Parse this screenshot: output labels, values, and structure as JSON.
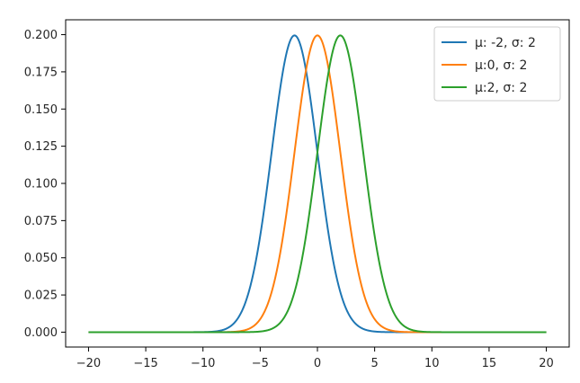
{
  "chart_data": {
    "type": "line",
    "title": "",
    "xlabel": "",
    "ylabel": "",
    "xlim": [
      -22,
      22
    ],
    "ylim": [
      -0.01,
      0.21
    ],
    "grid": false,
    "legend_placement": "top-right",
    "x_ticks": [
      -20,
      -15,
      -10,
      -5,
      0,
      5,
      10,
      15,
      20
    ],
    "x_tick_labels": [
      "−20",
      "−15",
      "−10",
      "−5",
      "0",
      "5",
      "10",
      "15",
      "20"
    ],
    "y_ticks": [
      0.0,
      0.025,
      0.05,
      0.075,
      0.1,
      0.125,
      0.15,
      0.175,
      0.2
    ],
    "y_tick_labels": [
      "0.000",
      "0.025",
      "0.050",
      "0.075",
      "0.100",
      "0.125",
      "0.150",
      "0.175",
      "0.200"
    ],
    "x_range": [
      -20,
      20
    ],
    "series": [
      {
        "name": "μ: -2, σ: 2",
        "mu": -2,
        "sigma": 2,
        "color": "#1f77b4"
      },
      {
        "name": "μ:0, σ: 2",
        "mu": 0,
        "sigma": 2,
        "color": "#ff7f0e"
      },
      {
        "name": "μ:2, σ: 2",
        "mu": 2,
        "sigma": 2,
        "color": "#2ca02c"
      }
    ]
  }
}
